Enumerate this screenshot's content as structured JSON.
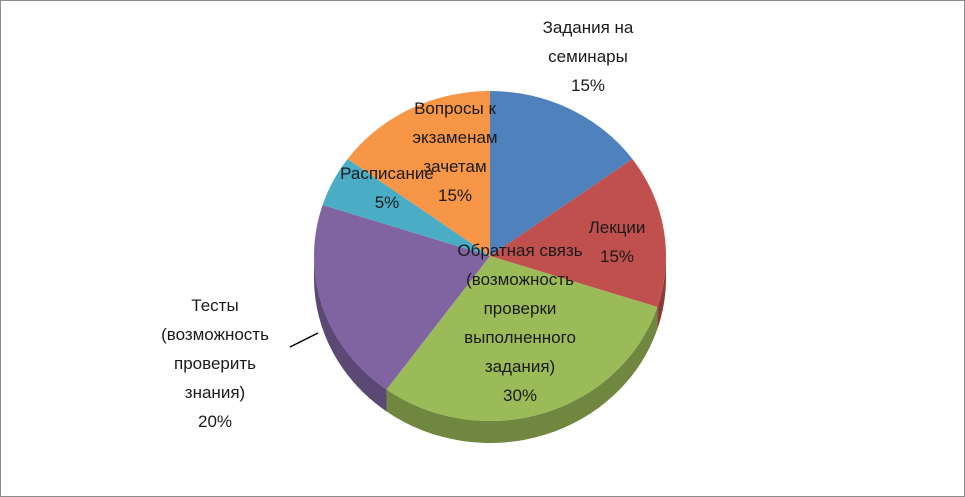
{
  "chart_data": {
    "type": "pie",
    "categories": [
      "Задания на семинары",
      "Лекции",
      "Обратная связь (возможность проверки выполненного задания)",
      "Тесты (возможность проверить знания)",
      "Расписание",
      "Вопросы к экзаменам зачетам"
    ],
    "values": [
      15,
      15,
      30,
      20,
      5,
      15
    ],
    "value_labels": [
      "15%",
      "15%",
      "30%",
      "20%",
      "5%",
      "15%"
    ],
    "colors": [
      "#4f81bd",
      "#c0504d",
      "#9bbb59",
      "#8064a2",
      "#4bacc6",
      "#f79646"
    ]
  }
}
